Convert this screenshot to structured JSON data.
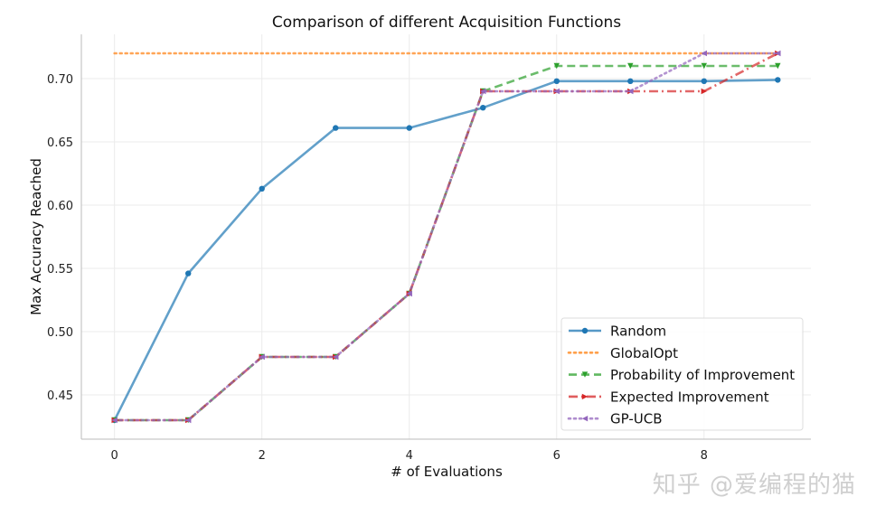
{
  "chart_data": {
    "type": "line",
    "title": "Comparison of different Acquisition Functions",
    "xlabel": "# of Evaluations",
    "ylabel": "Max Accuracy Reached",
    "xlim": [
      -0.45,
      9.45
    ],
    "ylim": [
      0.415,
      0.735
    ],
    "x_ticks": [
      0,
      2,
      4,
      6,
      8
    ],
    "y_ticks": [
      0.45,
      0.5,
      0.55,
      0.6,
      0.65,
      0.7
    ],
    "y_tick_labels": [
      "0.45",
      "0.50",
      "0.55",
      "0.60",
      "0.65",
      "0.70"
    ],
    "grid": true,
    "legend_position": "lower right",
    "x": [
      0,
      1,
      2,
      3,
      4,
      5,
      6,
      7,
      8,
      9
    ],
    "series": [
      {
        "name": "Random",
        "color": "#1f77b4",
        "style": "solid",
        "marker": "circle",
        "values": [
          0.43,
          0.546,
          0.613,
          0.661,
          0.661,
          0.677,
          0.698,
          0.698,
          0.698,
          0.699
        ]
      },
      {
        "name": "GlobalOpt",
        "color": "#ff7f0e",
        "style": "dotted",
        "marker": "none",
        "values": [
          0.72,
          0.72,
          0.72,
          0.72,
          0.72,
          0.72,
          0.72,
          0.72,
          0.72,
          0.72
        ]
      },
      {
        "name": "Probability of Improvement",
        "color": "#2ca02c",
        "style": "dashed",
        "marker": "triangle-down",
        "values": [
          0.43,
          0.43,
          0.48,
          0.48,
          0.53,
          0.69,
          0.71,
          0.71,
          0.71,
          0.71
        ]
      },
      {
        "name": "Expected Improvement",
        "color": "#d62728",
        "style": "dashdot",
        "marker": "triangle-right",
        "values": [
          0.43,
          0.43,
          0.48,
          0.48,
          0.53,
          0.69,
          0.69,
          0.69,
          0.69,
          0.72
        ]
      },
      {
        "name": "GP-UCB",
        "color": "#9467bd",
        "style": "dotted",
        "marker": "triangle-left",
        "values": [
          0.43,
          0.43,
          0.48,
          0.48,
          0.53,
          0.69,
          0.69,
          0.69,
          0.72,
          0.72
        ]
      }
    ]
  },
  "watermark": "知乎 @爱编程的猫"
}
